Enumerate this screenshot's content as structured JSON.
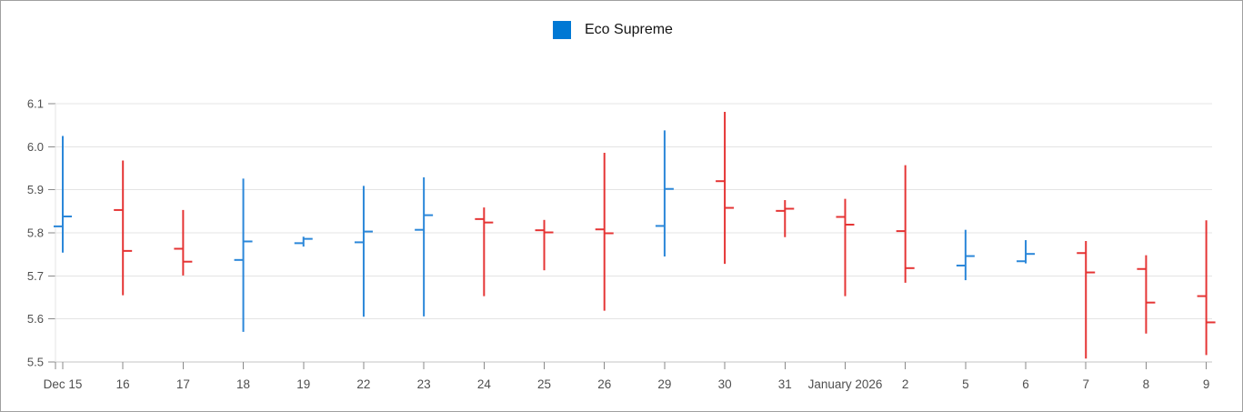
{
  "chart_data": {
    "type": "hlc-open-close",
    "title": "",
    "legend": {
      "position": "top-center",
      "items": [
        {
          "label": "Eco Supreme"
        }
      ]
    },
    "series_name": "Eco Supreme",
    "xlabel": "",
    "ylabel": "",
    "ylim": [
      5.5,
      6.1
    ],
    "yticks": [
      6.1,
      6.0,
      5.9,
      5.8,
      5.7,
      5.6,
      5.5
    ],
    "grid": true,
    "categories": [
      "Dec 15",
      "16",
      "17",
      "18",
      "19",
      "22",
      "23",
      "24",
      "25",
      "26",
      "29",
      "30",
      "31",
      "January 2026",
      "2",
      "5",
      "6",
      "7",
      "8",
      "9"
    ],
    "points": [
      {
        "label": "Dec 15",
        "open": 5.815,
        "high": 6.025,
        "low": 5.754,
        "close": 5.838,
        "direction": "up"
      },
      {
        "label": "16",
        "open": 5.853,
        "high": 5.968,
        "low": 5.655,
        "close": 5.758,
        "direction": "down"
      },
      {
        "label": "17",
        "open": 5.763,
        "high": 5.853,
        "low": 5.701,
        "close": 5.733,
        "direction": "down"
      },
      {
        "label": "18",
        "open": 5.737,
        "high": 5.926,
        "low": 5.57,
        "close": 5.78,
        "direction": "up"
      },
      {
        "label": "19",
        "open": 5.776,
        "high": 5.791,
        "low": 5.768,
        "close": 5.786,
        "direction": "up"
      },
      {
        "label": "22",
        "open": 5.778,
        "high": 5.909,
        "low": 5.605,
        "close": 5.803,
        "direction": "up"
      },
      {
        "label": "23",
        "open": 5.807,
        "high": 5.929,
        "low": 5.606,
        "close": 5.841,
        "direction": "up"
      },
      {
        "label": "24",
        "open": 5.832,
        "high": 5.859,
        "low": 5.653,
        "close": 5.824,
        "direction": "down"
      },
      {
        "label": "25",
        "open": 5.806,
        "high": 5.83,
        "low": 5.713,
        "close": 5.801,
        "direction": "down"
      },
      {
        "label": "26",
        "open": 5.808,
        "high": 5.986,
        "low": 5.619,
        "close": 5.799,
        "direction": "down"
      },
      {
        "label": "29",
        "open": 5.816,
        "high": 6.038,
        "low": 5.745,
        "close": 5.902,
        "direction": "up"
      },
      {
        "label": "30",
        "open": 5.92,
        "high": 6.081,
        "low": 5.728,
        "close": 5.858,
        "direction": "down"
      },
      {
        "label": "31",
        "open": 5.851,
        "high": 5.876,
        "low": 5.79,
        "close": 5.856,
        "direction": "down"
      },
      {
        "label": "January 2026",
        "open": 5.837,
        "high": 5.879,
        "low": 5.653,
        "close": 5.819,
        "direction": "down"
      },
      {
        "label": "2",
        "open": 5.804,
        "high": 5.957,
        "low": 5.684,
        "close": 5.718,
        "direction": "down"
      },
      {
        "label": "5",
        "open": 5.724,
        "high": 5.807,
        "low": 5.69,
        "close": 5.746,
        "direction": "up"
      },
      {
        "label": "6",
        "open": 5.734,
        "high": 5.783,
        "low": 5.729,
        "close": 5.751,
        "direction": "up"
      },
      {
        "label": "7",
        "open": 5.753,
        "high": 5.781,
        "low": 5.508,
        "close": 5.708,
        "direction": "down"
      },
      {
        "label": "8",
        "open": 5.716,
        "high": 5.748,
        "low": 5.566,
        "close": 5.638,
        "direction": "down"
      },
      {
        "label": "9",
        "open": 5.653,
        "high": 5.829,
        "low": 5.516,
        "close": 5.592,
        "direction": "down"
      }
    ],
    "colors": {
      "up": "#2b87d9",
      "down": "#e53535",
      "legend_swatch": "#0078d4",
      "grid_line": "#e4e4e4",
      "axis_line": "#c6c6c6",
      "tick": "#8a8a8a",
      "axis_label": "#4f4f4f",
      "legend_text": "#141414",
      "background": "#ffffff"
    }
  }
}
